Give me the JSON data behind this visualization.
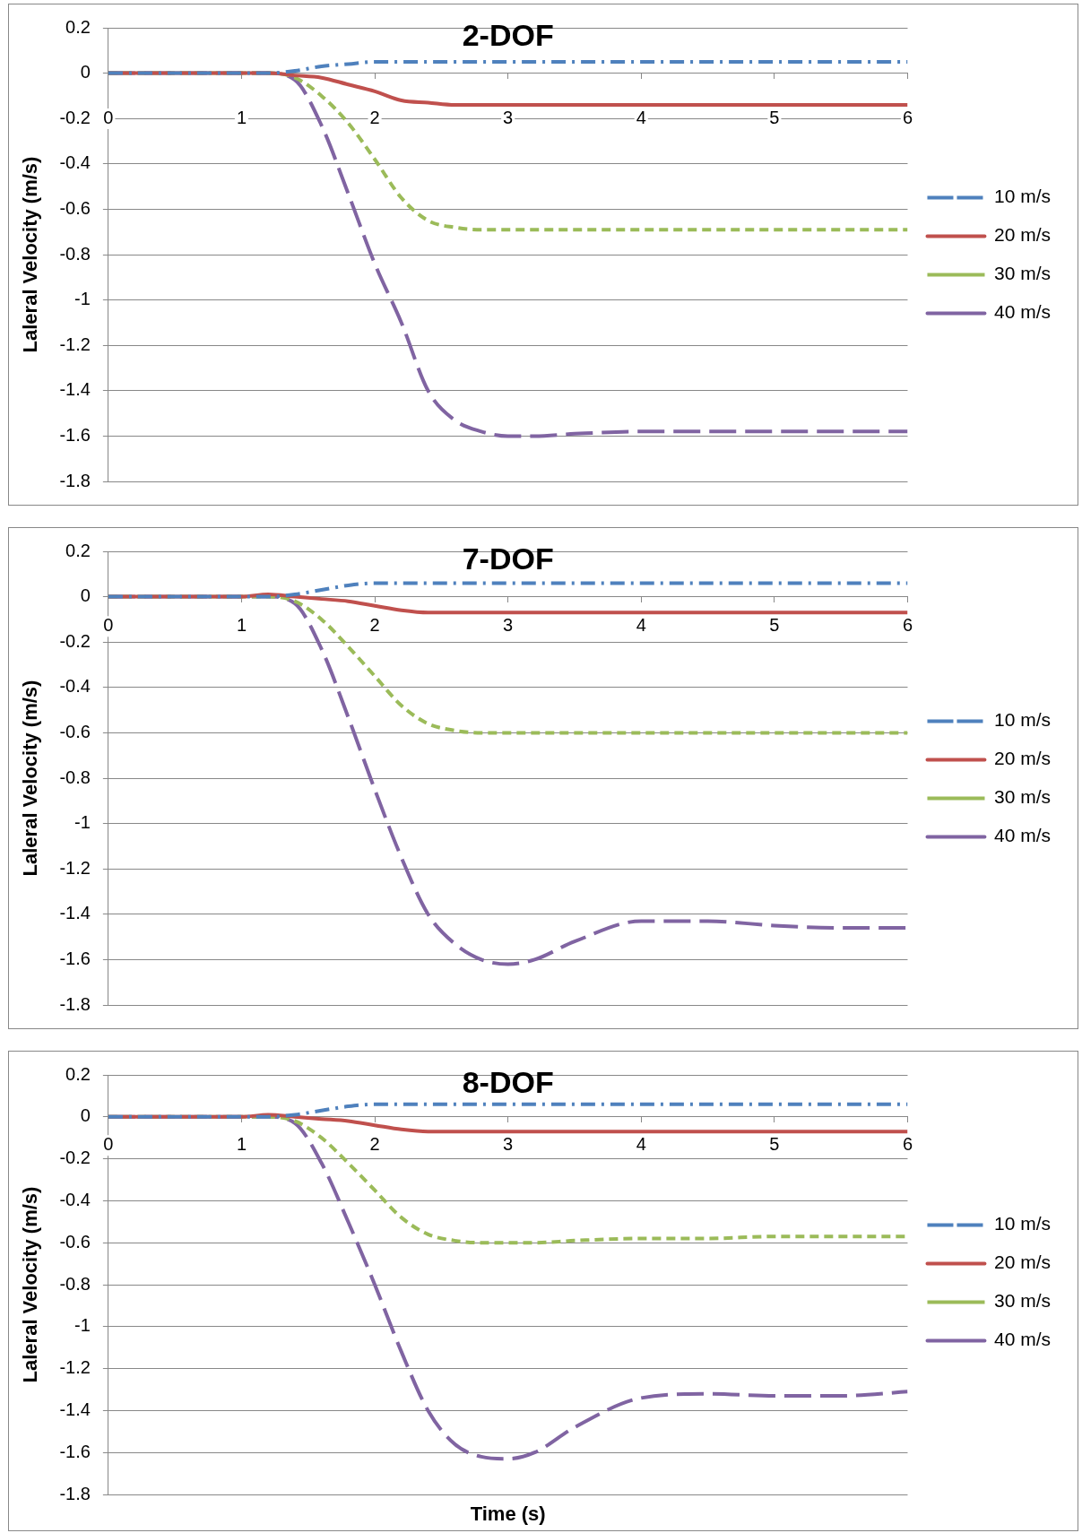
{
  "chart_data": [
    {
      "type": "line",
      "title": "2-DOF",
      "ylabel": "Laleral Velocity (m/s)",
      "x": [
        0,
        0.5,
        1,
        1.2,
        1.4,
        1.6,
        1.8,
        2,
        2.2,
        2.4,
        2.6,
        2.8,
        3,
        3.2,
        3.5,
        4,
        4.5,
        5,
        5.5,
        6
      ],
      "xlim": [
        0,
        6
      ],
      "xticks": [
        0,
        1,
        2,
        3,
        4,
        5,
        6
      ],
      "ylim": [
        -1.8,
        0.2
      ],
      "yticks": [
        0.2,
        0,
        -0.2,
        -0.4,
        -0.6,
        -0.8,
        -1,
        -1.2,
        -1.4,
        -1.6,
        -1.8
      ],
      "grid": "y",
      "legend": "right",
      "marker": "none",
      "series": [
        {
          "name": "10 m/s",
          "color": "#4f81bd",
          "line_style": "dashdot",
          "values": [
            0,
            0,
            0,
            0,
            0.01,
            0.03,
            0.04,
            0.05,
            0.05,
            0.05,
            0.05,
            0.05,
            0.05,
            0.05,
            0.05,
            0.05,
            0.05,
            0.05,
            0.05,
            0.05
          ]
        },
        {
          "name": "20 m/s",
          "color": "#c0504d",
          "line_style": "solid",
          "values": [
            0,
            0,
            0,
            0,
            -0.01,
            -0.02,
            -0.05,
            -0.08,
            -0.12,
            -0.13,
            -0.14,
            -0.14,
            -0.14,
            -0.14,
            -0.14,
            -0.14,
            -0.14,
            -0.14,
            -0.14,
            -0.14
          ]
        },
        {
          "name": "30 m/s",
          "color": "#9bbb59",
          "line_style": "dashed",
          "values": [
            0,
            0,
            0,
            0,
            -0.02,
            -0.1,
            -0.22,
            -0.38,
            -0.55,
            -0.65,
            -0.68,
            -0.69,
            -0.69,
            -0.69,
            -0.69,
            -0.69,
            -0.69,
            -0.69,
            -0.69,
            -0.69
          ]
        },
        {
          "name": "40 m/s",
          "color": "#8064a2",
          "line_style": "longdash",
          "values": [
            0,
            0,
            0,
            0,
            -0.03,
            -0.23,
            -0.53,
            -0.84,
            -1.1,
            -1.4,
            -1.53,
            -1.58,
            -1.6,
            -1.6,
            -1.59,
            -1.58,
            -1.58,
            -1.58,
            -1.58,
            -1.58
          ]
        }
      ]
    },
    {
      "type": "line",
      "title": "7-DOF",
      "ylabel": "Laleral Velocity (m/s)",
      "x": [
        0,
        0.5,
        1,
        1.2,
        1.4,
        1.6,
        1.8,
        2,
        2.2,
        2.4,
        2.6,
        2.8,
        3,
        3.2,
        3.5,
        4,
        4.5,
        5,
        5.5,
        6
      ],
      "xlim": [
        0,
        6
      ],
      "xticks": [
        0,
        1,
        2,
        3,
        4,
        5,
        6
      ],
      "ylim": [
        -1.8,
        0.2
      ],
      "yticks": [
        0.2,
        0,
        -0.2,
        -0.4,
        -0.6,
        -0.8,
        -1,
        -1.2,
        -1.4,
        -1.6,
        -1.8
      ],
      "grid": "y",
      "legend": "right",
      "marker": "none",
      "series": [
        {
          "name": "10 m/s",
          "color": "#4f81bd",
          "line_style": "dashdot",
          "values": [
            0,
            0,
            0,
            0,
            0.01,
            0.03,
            0.05,
            0.06,
            0.06,
            0.06,
            0.06,
            0.06,
            0.06,
            0.06,
            0.06,
            0.06,
            0.06,
            0.06,
            0.06,
            0.06
          ]
        },
        {
          "name": "20 m/s",
          "color": "#c0504d",
          "line_style": "solid",
          "values": [
            0,
            0,
            0,
            0.01,
            0,
            -0.01,
            -0.02,
            -0.04,
            -0.06,
            -0.07,
            -0.07,
            -0.07,
            -0.07,
            -0.07,
            -0.07,
            -0.07,
            -0.07,
            -0.07,
            -0.07,
            -0.07
          ]
        },
        {
          "name": "30 m/s",
          "color": "#9bbb59",
          "line_style": "dashed",
          "values": [
            0,
            0,
            0,
            0,
            -0.02,
            -0.1,
            -0.22,
            -0.35,
            -0.48,
            -0.56,
            -0.59,
            -0.6,
            -0.6,
            -0.6,
            -0.6,
            -0.6,
            -0.6,
            -0.6,
            -0.6,
            -0.6
          ]
        },
        {
          "name": "40 m/s",
          "color": "#8064a2",
          "line_style": "longdash",
          "values": [
            0,
            0,
            0,
            0,
            -0.03,
            -0.23,
            -0.53,
            -0.85,
            -1.15,
            -1.4,
            -1.53,
            -1.6,
            -1.62,
            -1.6,
            -1.52,
            -1.43,
            -1.43,
            -1.45,
            -1.46,
            -1.46
          ]
        }
      ]
    },
    {
      "type": "line",
      "title": "8-DOF",
      "xlabel": "Time (s)",
      "ylabel": "Laleral Velocity (m/s)",
      "x": [
        0,
        0.5,
        1,
        1.2,
        1.4,
        1.6,
        1.8,
        2,
        2.2,
        2.4,
        2.6,
        2.8,
        3,
        3.2,
        3.5,
        4,
        4.5,
        5,
        5.5,
        6
      ],
      "xlim": [
        0,
        6
      ],
      "xticks": [
        0,
        1,
        2,
        3,
        4,
        5,
        6
      ],
      "ylim": [
        -1.8,
        0.2
      ],
      "yticks": [
        0.2,
        0,
        -0.2,
        -0.4,
        -0.6,
        -0.8,
        -1,
        -1.2,
        -1.4,
        -1.6,
        -1.8
      ],
      "grid": "y",
      "legend": "right",
      "marker": "none",
      "series": [
        {
          "name": "10 m/s",
          "color": "#4f81bd",
          "line_style": "dashdot",
          "values": [
            0,
            0,
            0,
            0,
            0.01,
            0.03,
            0.05,
            0.06,
            0.06,
            0.06,
            0.06,
            0.06,
            0.06,
            0.06,
            0.06,
            0.06,
            0.06,
            0.06,
            0.06,
            0.06
          ]
        },
        {
          "name": "20 m/s",
          "color": "#c0504d",
          "line_style": "solid",
          "values": [
            0,
            0,
            0,
            0.01,
            0,
            -0.01,
            -0.02,
            -0.04,
            -0.06,
            -0.07,
            -0.07,
            -0.07,
            -0.07,
            -0.07,
            -0.07,
            -0.07,
            -0.07,
            -0.07,
            -0.07,
            -0.07
          ]
        },
        {
          "name": "30 m/s",
          "color": "#9bbb59",
          "line_style": "dashed",
          "values": [
            0,
            0,
            0,
            0,
            -0.02,
            -0.1,
            -0.22,
            -0.35,
            -0.48,
            -0.56,
            -0.59,
            -0.6,
            -0.6,
            -0.6,
            -0.59,
            -0.58,
            -0.58,
            -0.57,
            -0.57,
            -0.57
          ]
        },
        {
          "name": "40 m/s",
          "color": "#8064a2",
          "line_style": "longdash",
          "values": [
            0,
            0,
            0,
            0,
            -0.03,
            -0.22,
            -0.5,
            -0.8,
            -1.12,
            -1.4,
            -1.56,
            -1.62,
            -1.63,
            -1.6,
            -1.48,
            -1.34,
            -1.32,
            -1.33,
            -1.33,
            -1.31
          ]
        }
      ]
    }
  ]
}
